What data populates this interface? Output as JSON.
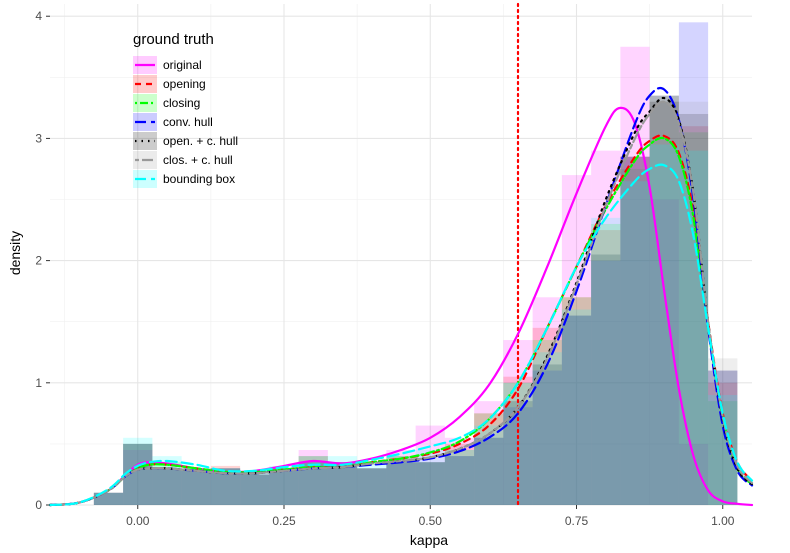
{
  "chart_data": {
    "type": "histogram_density",
    "xlabel": "kappa",
    "ylabel": "density",
    "xlim": [
      -0.15,
      1.05
    ],
    "ylim": [
      0,
      4.1
    ],
    "x_ticks": [
      0.0,
      0.25,
      0.5,
      0.75,
      1.0
    ],
    "x_tick_labels": [
      "0.00",
      "0.25",
      "0.50",
      "0.75",
      "1.00"
    ],
    "y_ticks": [
      0,
      1,
      2,
      3,
      4
    ],
    "y_tick_labels": [
      "0",
      "1",
      "2",
      "3",
      "4"
    ],
    "grid": true,
    "legend": {
      "title": "ground truth",
      "position": "top-left"
    },
    "reference_line": {
      "x": 0.65,
      "color": "#ff0000",
      "style": "dotted"
    },
    "bin_edges": [
      -0.075,
      -0.025,
      0.025,
      0.075,
      0.125,
      0.175,
      0.225,
      0.275,
      0.325,
      0.375,
      0.425,
      0.475,
      0.525,
      0.575,
      0.625,
      0.675,
      0.725,
      0.775,
      0.825,
      0.875,
      0.925,
      0.975,
      1.025
    ],
    "series": [
      {
        "name": "original",
        "color": "#ff00ff",
        "dash": "solid",
        "hist": [
          0.1,
          0.45,
          0.3,
          0.28,
          0.3,
          0.25,
          0.3,
          0.45,
          0.35,
          0.3,
          0.45,
          0.65,
          0.55,
          0.85,
          1.35,
          1.7,
          2.7,
          2.9,
          3.75,
          2.5,
          0.5,
          0,
          0
        ],
        "density": [
          [
            -0.15,
            0.0
          ],
          [
            -0.1,
            0.02
          ],
          [
            -0.05,
            0.12
          ],
          [
            -0.02,
            0.25
          ],
          [
            0.0,
            0.33
          ],
          [
            0.02,
            0.35
          ],
          [
            0.05,
            0.34
          ],
          [
            0.1,
            0.3
          ],
          [
            0.15,
            0.27
          ],
          [
            0.2,
            0.28
          ],
          [
            0.25,
            0.32
          ],
          [
            0.3,
            0.36
          ],
          [
            0.35,
            0.34
          ],
          [
            0.4,
            0.38
          ],
          [
            0.45,
            0.45
          ],
          [
            0.5,
            0.55
          ],
          [
            0.55,
            0.72
          ],
          [
            0.6,
            0.98
          ],
          [
            0.65,
            1.4
          ],
          [
            0.7,
            1.95
          ],
          [
            0.75,
            2.55
          ],
          [
            0.8,
            3.1
          ],
          [
            0.825,
            3.25
          ],
          [
            0.85,
            3.12
          ],
          [
            0.875,
            2.6
          ],
          [
            0.9,
            1.75
          ],
          [
            0.925,
            0.95
          ],
          [
            0.95,
            0.4
          ],
          [
            0.975,
            0.12
          ],
          [
            1.0,
            0.03
          ],
          [
            1.025,
            0.01
          ],
          [
            1.05,
            0.0
          ]
        ]
      },
      {
        "name": "opening",
        "color": "#ff0000",
        "dash": "dashed",
        "hist": [
          0.1,
          0.5,
          0.3,
          0.3,
          0.32,
          0.25,
          0.3,
          0.4,
          0.35,
          0.3,
          0.4,
          0.35,
          0.5,
          0.75,
          1.05,
          1.45,
          1.7,
          2.25,
          2.85,
          3.35,
          3.1,
          1.0,
          0.2
        ],
        "density": [
          [
            -0.15,
            0.0
          ],
          [
            -0.1,
            0.02
          ],
          [
            -0.05,
            0.12
          ],
          [
            -0.02,
            0.24
          ],
          [
            0.0,
            0.3
          ],
          [
            0.02,
            0.33
          ],
          [
            0.05,
            0.33
          ],
          [
            0.1,
            0.3
          ],
          [
            0.15,
            0.27
          ],
          [
            0.2,
            0.27
          ],
          [
            0.25,
            0.29
          ],
          [
            0.3,
            0.31
          ],
          [
            0.35,
            0.31
          ],
          [
            0.4,
            0.35
          ],
          [
            0.45,
            0.38
          ],
          [
            0.5,
            0.42
          ],
          [
            0.55,
            0.5
          ],
          [
            0.6,
            0.65
          ],
          [
            0.65,
            0.95
          ],
          [
            0.7,
            1.45
          ],
          [
            0.75,
            1.95
          ],
          [
            0.8,
            2.45
          ],
          [
            0.85,
            2.85
          ],
          [
            0.875,
            2.98
          ],
          [
            0.9,
            3.02
          ],
          [
            0.925,
            2.88
          ],
          [
            0.95,
            2.4
          ],
          [
            0.975,
            1.5
          ],
          [
            1.0,
            0.75
          ],
          [
            1.025,
            0.35
          ],
          [
            1.05,
            0.2
          ]
        ]
      },
      {
        "name": "closing",
        "color": "#00ff00",
        "dash": "dashdot",
        "hist": [
          0.1,
          0.5,
          0.35,
          0.3,
          0.3,
          0.25,
          0.3,
          0.4,
          0.35,
          0.3,
          0.4,
          0.35,
          0.45,
          0.75,
          1.0,
          1.35,
          1.7,
          2.3,
          2.75,
          3.35,
          3.05,
          0.85,
          0.2
        ],
        "density": [
          [
            -0.15,
            0.0
          ],
          [
            -0.1,
            0.02
          ],
          [
            -0.05,
            0.12
          ],
          [
            -0.02,
            0.24
          ],
          [
            0.0,
            0.3
          ],
          [
            0.02,
            0.33
          ],
          [
            0.05,
            0.33
          ],
          [
            0.1,
            0.3
          ],
          [
            0.15,
            0.27
          ],
          [
            0.2,
            0.27
          ],
          [
            0.25,
            0.29
          ],
          [
            0.3,
            0.31
          ],
          [
            0.35,
            0.31
          ],
          [
            0.4,
            0.35
          ],
          [
            0.45,
            0.38
          ],
          [
            0.5,
            0.43
          ],
          [
            0.55,
            0.52
          ],
          [
            0.6,
            0.7
          ],
          [
            0.65,
            1.0
          ],
          [
            0.7,
            1.45
          ],
          [
            0.75,
            1.95
          ],
          [
            0.8,
            2.42
          ],
          [
            0.85,
            2.82
          ],
          [
            0.875,
            2.95
          ],
          [
            0.9,
            3.0
          ],
          [
            0.925,
            2.85
          ],
          [
            0.95,
            2.35
          ],
          [
            0.975,
            1.45
          ],
          [
            1.0,
            0.72
          ],
          [
            1.025,
            0.3
          ],
          [
            1.05,
            0.17
          ]
        ]
      },
      {
        "name": "conv. hull",
        "color": "#0000ff",
        "dash": "longdash",
        "hist": [
          0.1,
          0.5,
          0.3,
          0.28,
          0.3,
          0.25,
          0.3,
          0.35,
          0.35,
          0.3,
          0.35,
          0.35,
          0.4,
          0.55,
          0.8,
          1.1,
          1.55,
          2.0,
          2.85,
          3.35,
          3.95,
          1.1,
          0.2
        ],
        "density": [
          [
            -0.15,
            0.0
          ],
          [
            -0.1,
            0.02
          ],
          [
            -0.05,
            0.12
          ],
          [
            -0.02,
            0.24
          ],
          [
            0.0,
            0.29
          ],
          [
            0.02,
            0.3
          ],
          [
            0.05,
            0.3
          ],
          [
            0.1,
            0.28
          ],
          [
            0.15,
            0.26
          ],
          [
            0.2,
            0.26
          ],
          [
            0.25,
            0.28
          ],
          [
            0.3,
            0.3
          ],
          [
            0.35,
            0.31
          ],
          [
            0.4,
            0.33
          ],
          [
            0.45,
            0.35
          ],
          [
            0.5,
            0.38
          ],
          [
            0.55,
            0.44
          ],
          [
            0.6,
            0.55
          ],
          [
            0.65,
            0.75
          ],
          [
            0.7,
            1.15
          ],
          [
            0.75,
            1.75
          ],
          [
            0.8,
            2.45
          ],
          [
            0.85,
            3.12
          ],
          [
            0.875,
            3.35
          ],
          [
            0.9,
            3.4
          ],
          [
            0.925,
            3.15
          ],
          [
            0.95,
            2.5
          ],
          [
            0.975,
            1.45
          ],
          [
            1.0,
            0.65
          ],
          [
            1.025,
            0.28
          ],
          [
            1.05,
            0.16
          ]
        ]
      },
      {
        "name": "open. + c. hull",
        "color": "#000000",
        "dash": "dotted",
        "hist": [
          0.1,
          0.5,
          0.3,
          0.28,
          0.3,
          0.25,
          0.3,
          0.35,
          0.35,
          0.3,
          0.35,
          0.35,
          0.4,
          0.55,
          0.85,
          1.15,
          1.55,
          2.05,
          2.85,
          3.3,
          3.2,
          1.1,
          0.2
        ],
        "density": [
          [
            -0.15,
            0.0
          ],
          [
            -0.1,
            0.02
          ],
          [
            -0.05,
            0.12
          ],
          [
            -0.02,
            0.24
          ],
          [
            0.0,
            0.29
          ],
          [
            0.02,
            0.3
          ],
          [
            0.05,
            0.3
          ],
          [
            0.1,
            0.28
          ],
          [
            0.15,
            0.26
          ],
          [
            0.2,
            0.26
          ],
          [
            0.25,
            0.28
          ],
          [
            0.3,
            0.3
          ],
          [
            0.35,
            0.31
          ],
          [
            0.4,
            0.34
          ],
          [
            0.45,
            0.36
          ],
          [
            0.5,
            0.39
          ],
          [
            0.55,
            0.46
          ],
          [
            0.6,
            0.58
          ],
          [
            0.65,
            0.8
          ],
          [
            0.7,
            1.22
          ],
          [
            0.75,
            1.82
          ],
          [
            0.8,
            2.5
          ],
          [
            0.85,
            3.05
          ],
          [
            0.875,
            3.22
          ],
          [
            0.9,
            3.33
          ],
          [
            0.925,
            3.15
          ],
          [
            0.95,
            2.55
          ],
          [
            0.975,
            1.5
          ],
          [
            1.0,
            0.7
          ],
          [
            1.025,
            0.3
          ],
          [
            1.05,
            0.17
          ]
        ]
      },
      {
        "name": "clos. + c. hull",
        "color": "#999999",
        "dash": "twodash",
        "hist": [
          0.1,
          0.5,
          0.3,
          0.28,
          0.3,
          0.25,
          0.3,
          0.35,
          0.35,
          0.3,
          0.35,
          0.35,
          0.4,
          0.55,
          0.85,
          1.15,
          1.55,
          2.05,
          2.85,
          3.3,
          3.3,
          1.2,
          0.2
        ],
        "density": [
          [
            -0.15,
            0.0
          ],
          [
            -0.1,
            0.02
          ],
          [
            -0.05,
            0.12
          ],
          [
            -0.02,
            0.24
          ],
          [
            0.0,
            0.29
          ],
          [
            0.02,
            0.3
          ],
          [
            0.05,
            0.3
          ],
          [
            0.1,
            0.28
          ],
          [
            0.15,
            0.26
          ],
          [
            0.2,
            0.26
          ],
          [
            0.25,
            0.28
          ],
          [
            0.3,
            0.3
          ],
          [
            0.35,
            0.31
          ],
          [
            0.4,
            0.34
          ],
          [
            0.45,
            0.36
          ],
          [
            0.5,
            0.39
          ],
          [
            0.55,
            0.46
          ],
          [
            0.6,
            0.58
          ],
          [
            0.65,
            0.8
          ],
          [
            0.7,
            1.2
          ],
          [
            0.75,
            1.8
          ],
          [
            0.8,
            2.45
          ],
          [
            0.85,
            3.0
          ],
          [
            0.875,
            3.2
          ],
          [
            0.9,
            3.3
          ],
          [
            0.925,
            3.12
          ],
          [
            0.95,
            2.55
          ],
          [
            0.975,
            1.5
          ],
          [
            1.0,
            0.72
          ],
          [
            1.025,
            0.32
          ],
          [
            1.05,
            0.18
          ]
        ]
      },
      {
        "name": "bounding box",
        "color": "#00ffff",
        "dash": "longdash",
        "hist": [
          0.1,
          0.55,
          0.4,
          0.3,
          0.3,
          0.28,
          0.32,
          0.4,
          0.4,
          0.35,
          0.4,
          0.45,
          0.45,
          0.65,
          1.0,
          1.25,
          1.6,
          2.35,
          2.65,
          2.95,
          2.9,
          0.9,
          0.2
        ],
        "density": [
          [
            -0.15,
            0.0
          ],
          [
            -0.1,
            0.02
          ],
          [
            -0.05,
            0.13
          ],
          [
            -0.02,
            0.26
          ],
          [
            0.0,
            0.32
          ],
          [
            0.02,
            0.35
          ],
          [
            0.05,
            0.36
          ],
          [
            0.1,
            0.33
          ],
          [
            0.15,
            0.28
          ],
          [
            0.2,
            0.28
          ],
          [
            0.25,
            0.31
          ],
          [
            0.3,
            0.33
          ],
          [
            0.35,
            0.33
          ],
          [
            0.4,
            0.37
          ],
          [
            0.45,
            0.42
          ],
          [
            0.5,
            0.48
          ],
          [
            0.55,
            0.55
          ],
          [
            0.6,
            0.7
          ],
          [
            0.65,
            1.0
          ],
          [
            0.7,
            1.45
          ],
          [
            0.75,
            1.95
          ],
          [
            0.8,
            2.35
          ],
          [
            0.85,
            2.65
          ],
          [
            0.875,
            2.75
          ],
          [
            0.9,
            2.78
          ],
          [
            0.925,
            2.65
          ],
          [
            0.95,
            2.2
          ],
          [
            0.975,
            1.45
          ],
          [
            1.0,
            0.75
          ],
          [
            1.025,
            0.35
          ],
          [
            1.05,
            0.2
          ]
        ]
      }
    ]
  }
}
